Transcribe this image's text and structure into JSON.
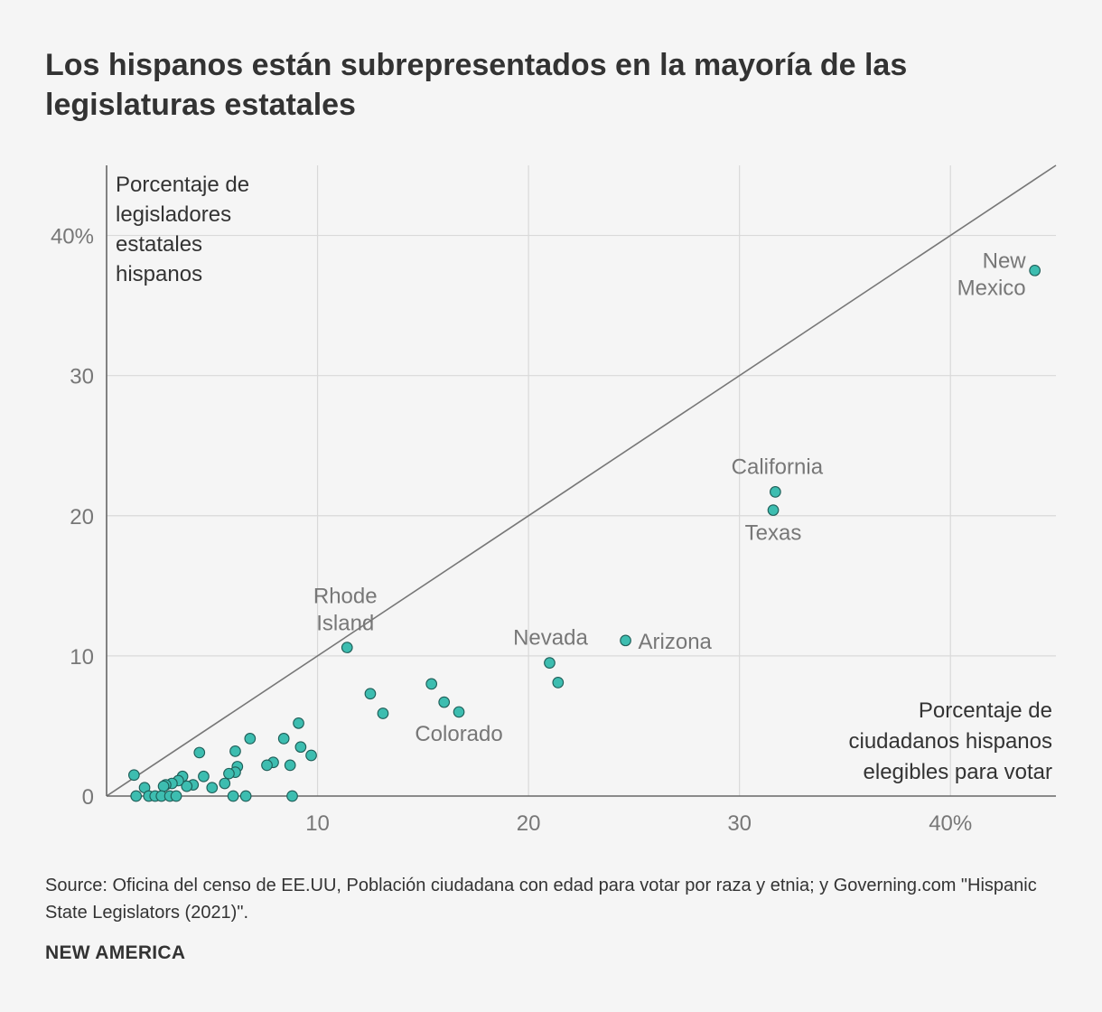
{
  "title": "Los hispanos están subrepresentados en la mayoría de las legislaturas estatales",
  "source": "Source: Oficina del censo de EE.UU, Población ciudadana con edad para votar por raza y etnia; y Governing.com \"Hispanic State Legislators (2021)\".",
  "brand": "NEW AMERICA",
  "colors": {
    "point": "#3dbdb0",
    "point_stroke": "#1f5e58",
    "grid": "#d9d9d9",
    "axis": "#666666",
    "reference_line": "#777777",
    "background": "#f5f5f5"
  },
  "chart_data": {
    "type": "scatter",
    "xlabel": [
      "Porcentaje de",
      "ciudadanos hispanos",
      "elegibles para votar"
    ],
    "ylabel": [
      "Porcentaje de",
      "legisladores",
      "estatales",
      "hispanos"
    ],
    "xlim": [
      0,
      45
    ],
    "ylim": [
      0,
      45
    ],
    "x_ticks": [
      {
        "value": 10,
        "label": "10"
      },
      {
        "value": 20,
        "label": "20"
      },
      {
        "value": 30,
        "label": "30"
      },
      {
        "value": 40,
        "label": "40%"
      }
    ],
    "y_ticks": [
      {
        "value": 0,
        "label": "0"
      },
      {
        "value": 10,
        "label": "10"
      },
      {
        "value": 20,
        "label": "20"
      },
      {
        "value": 30,
        "label": "30"
      },
      {
        "value": 40,
        "label": "40%"
      }
    ],
    "grid": true,
    "reference_line": {
      "label": "y = x",
      "from": [
        0,
        0
      ],
      "to": [
        45,
        45
      ]
    },
    "labels": [
      {
        "text": [
          "New",
          "Mexico"
        ],
        "x": 44.0,
        "y": 37.5
      },
      {
        "text": [
          "California"
        ],
        "x": 31.7,
        "y": 21.7
      },
      {
        "text": [
          "Texas"
        ],
        "x": 31.6,
        "y": 20.4
      },
      {
        "text": [
          "Rhode",
          "Island"
        ],
        "x": 11.4,
        "y": 10.6
      },
      {
        "text": [
          "Nevada"
        ],
        "x": 21.0,
        "y": 9.5
      },
      {
        "text": [
          "Arizona"
        ],
        "x": 24.6,
        "y": 11.1
      },
      {
        "text": [
          "Colorado"
        ],
        "x": 16.7,
        "y": 6.0
      }
    ],
    "points": [
      {
        "x": 44.0,
        "y": 37.5
      },
      {
        "x": 31.7,
        "y": 21.7
      },
      {
        "x": 31.6,
        "y": 20.4
      },
      {
        "x": 24.6,
        "y": 11.1
      },
      {
        "x": 21.0,
        "y": 9.5
      },
      {
        "x": 21.4,
        "y": 8.1
      },
      {
        "x": 11.4,
        "y": 10.6
      },
      {
        "x": 12.5,
        "y": 7.3
      },
      {
        "x": 13.1,
        "y": 5.9
      },
      {
        "x": 15.4,
        "y": 8.0
      },
      {
        "x": 16.0,
        "y": 6.7
      },
      {
        "x": 16.7,
        "y": 6.0
      },
      {
        "x": 9.1,
        "y": 5.2
      },
      {
        "x": 9.2,
        "y": 3.5
      },
      {
        "x": 9.7,
        "y": 2.9
      },
      {
        "x": 8.4,
        "y": 4.1
      },
      {
        "x": 8.7,
        "y": 2.2
      },
      {
        "x": 7.9,
        "y": 2.4
      },
      {
        "x": 7.6,
        "y": 2.2
      },
      {
        "x": 6.8,
        "y": 4.1
      },
      {
        "x": 6.1,
        "y": 3.2
      },
      {
        "x": 6.2,
        "y": 2.1
      },
      {
        "x": 6.1,
        "y": 1.7
      },
      {
        "x": 5.8,
        "y": 1.6
      },
      {
        "x": 5.6,
        "y": 0.9
      },
      {
        "x": 4.4,
        "y": 3.1
      },
      {
        "x": 4.6,
        "y": 1.4
      },
      {
        "x": 5.0,
        "y": 0.6
      },
      {
        "x": 4.1,
        "y": 0.8
      },
      {
        "x": 3.8,
        "y": 0.7
      },
      {
        "x": 3.6,
        "y": 1.4
      },
      {
        "x": 3.4,
        "y": 1.1
      },
      {
        "x": 3.1,
        "y": 0.9
      },
      {
        "x": 2.8,
        "y": 0.8
      },
      {
        "x": 2.7,
        "y": 0.7
      },
      {
        "x": 1.3,
        "y": 1.5
      },
      {
        "x": 1.8,
        "y": 0.6
      },
      {
        "x": 1.4,
        "y": 0.0
      },
      {
        "x": 2.0,
        "y": 0.0
      },
      {
        "x": 2.3,
        "y": 0.0
      },
      {
        "x": 2.6,
        "y": 0.0
      },
      {
        "x": 3.0,
        "y": 0.0
      },
      {
        "x": 3.3,
        "y": 0.0
      },
      {
        "x": 6.0,
        "y": 0.0
      },
      {
        "x": 6.6,
        "y": 0.0
      },
      {
        "x": 8.8,
        "y": 0.0
      }
    ]
  }
}
